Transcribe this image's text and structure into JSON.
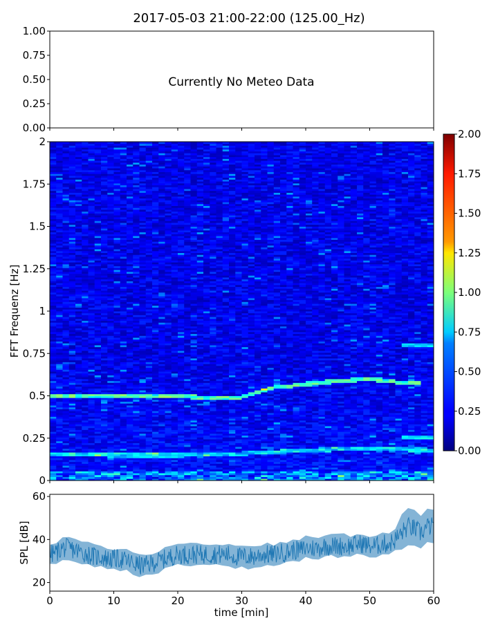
{
  "figure": {
    "title": "2017-05-03 21:00-22:00 (125.00_Hz)"
  },
  "chart_data": [
    {
      "type": "line",
      "panel": "meteo",
      "message": "Currently No Meteo Data",
      "xlim": [
        0,
        60
      ],
      "ylim": [
        0,
        1
      ],
      "yticks": [
        "0.00",
        "0.25",
        "0.50",
        "0.75",
        "1.00"
      ],
      "series": []
    },
    {
      "type": "heatmap",
      "panel": "spectrogram",
      "ylabel": "FFT Frequenz [Hz]",
      "xlim": [
        0,
        60
      ],
      "ylim": [
        0,
        2
      ],
      "yticks": [
        "0",
        "0.25",
        "0.5",
        "0.75",
        "1",
        "1.25",
        "1.5",
        "1.75",
        "2"
      ],
      "colormap": "jet",
      "colorbar": {
        "range": [
          0,
          2
        ],
        "ticks": [
          "0.00",
          "0.25",
          "0.50",
          "0.75",
          "1.00",
          "1.25",
          "1.50",
          "1.75",
          "2.00"
        ]
      },
      "features": [
        {
          "description": "tonal line",
          "x": [
            0,
            10,
            20,
            25,
            30,
            35,
            40,
            45,
            50,
            55
          ],
          "y": [
            0.5,
            0.5,
            0.5,
            0.49,
            0.49,
            0.55,
            0.57,
            0.59,
            0.6,
            0.58
          ]
        },
        {
          "description": "low tonal line",
          "x": [
            0,
            10,
            20,
            30,
            40,
            50,
            60
          ],
          "y": [
            0.16,
            0.15,
            0.15,
            0.16,
            0.18,
            0.19,
            0.18
          ]
        }
      ]
    },
    {
      "type": "line",
      "panel": "spl",
      "xlabel": "time [min]",
      "ylabel": "SPL [dB]",
      "xlim": [
        0,
        60
      ],
      "ylim": [
        16,
        61
      ],
      "xticks": [
        "0",
        "10",
        "20",
        "30",
        "40",
        "50",
        "60"
      ],
      "yticks": [
        "20",
        "40",
        "60"
      ],
      "color": "#1f77b4",
      "series": [
        {
          "x": [
            0,
            1,
            2,
            3,
            4,
            5,
            6,
            7,
            8,
            9,
            10,
            11,
            12,
            13,
            14,
            15,
            16,
            17,
            18,
            19,
            20,
            21,
            22,
            23,
            24,
            25,
            26,
            27,
            28,
            29,
            30,
            31,
            32,
            33,
            34,
            35,
            36,
            37,
            38,
            39,
            40,
            41,
            42,
            43,
            44,
            45,
            46,
            47,
            48,
            49,
            50,
            51,
            52,
            53,
            54,
            55,
            56,
            57,
            58,
            59,
            60
          ],
          "values": [
            33,
            34,
            36,
            36,
            35,
            34,
            33,
            32,
            32,
            31,
            31,
            31,
            30,
            29,
            28,
            28,
            29,
            30,
            31,
            32,
            33,
            33,
            33,
            33,
            33,
            33,
            33,
            33,
            33,
            32,
            32,
            32,
            32,
            33,
            33,
            33,
            34,
            34,
            35,
            35,
            36,
            36,
            36,
            37,
            37,
            37,
            37,
            37,
            38,
            38,
            37,
            37,
            38,
            38,
            40,
            43,
            46,
            45,
            43,
            46,
            46
          ]
        }
      ]
    }
  ]
}
